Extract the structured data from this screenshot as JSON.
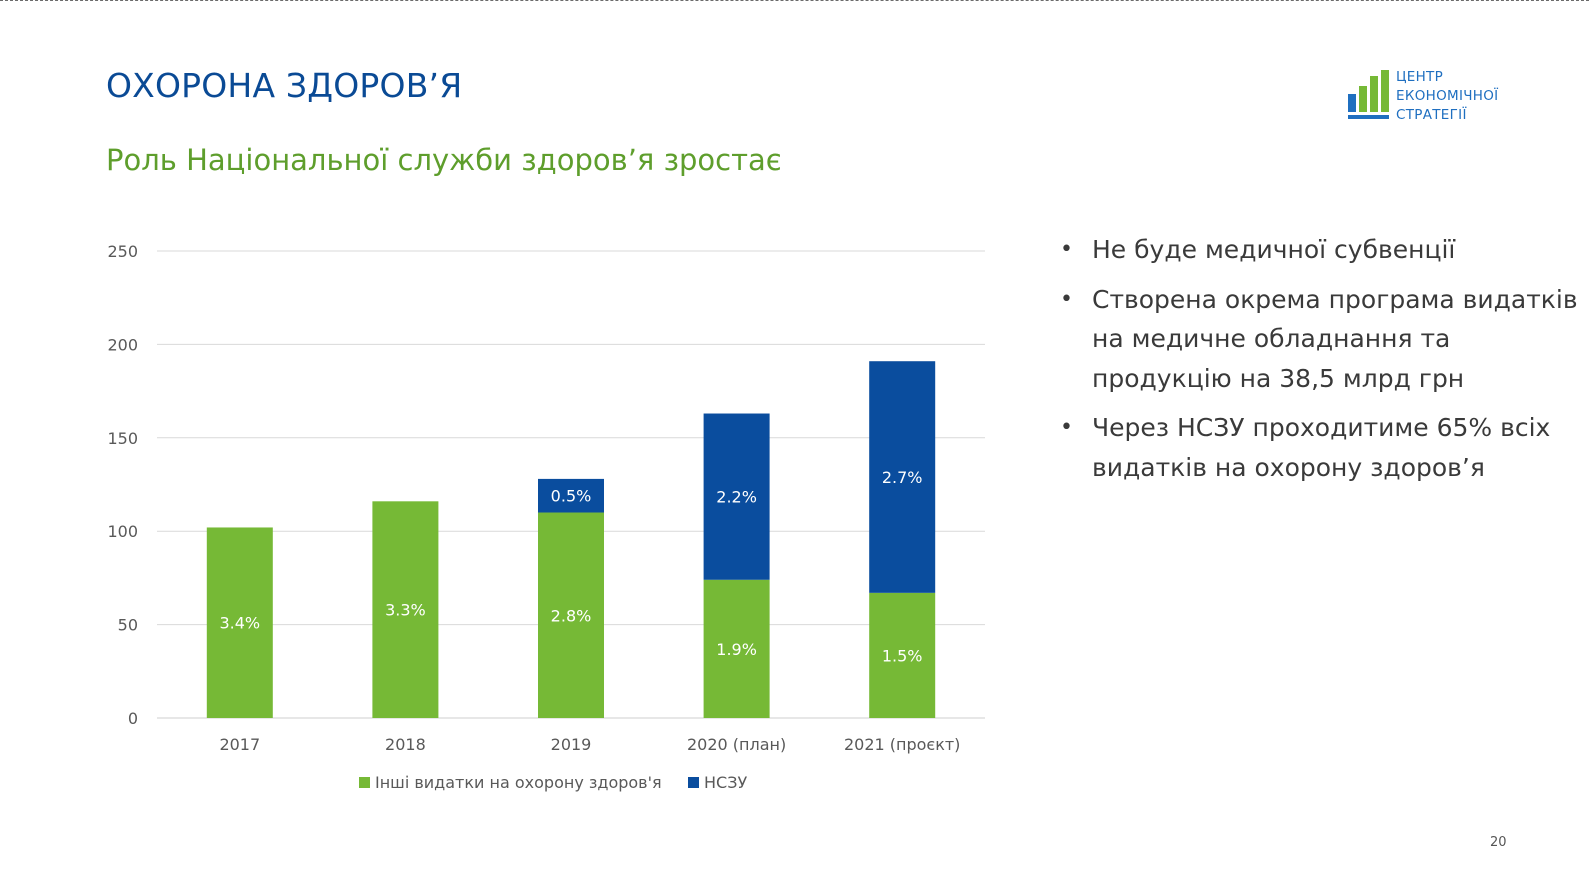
{
  "slide": {
    "title": "ОХОРОНА ЗДОРОВ’Я",
    "subtitle": "Роль Національної служби здоров’я зростає",
    "page_number": "20"
  },
  "logo": {
    "lines": [
      "ЦЕНТР",
      "ЕКОНОМІЧНОЇ",
      "СТРАТЕГІЇ"
    ],
    "icon": "bar-chart-logo-icon"
  },
  "bullets": [
    "Не буде медичної субвенції",
    "Створена окрема програма видатків на медичне обладнання та продукцію на 38,5 млрд грн",
    "Через НСЗУ проходитиме 65% всіх видатків на охорону здоров’я"
  ],
  "colors": {
    "title": "#0a4a95",
    "subtitle": "#5e9e2c",
    "green": "#76b936",
    "blue": "#0a4d9e",
    "grid": "#d9d9d9",
    "axis_text": "#595959"
  },
  "chart_data": {
    "type": "bar",
    "stacked": true,
    "title": "",
    "xlabel": "",
    "ylabel": "",
    "ylim": [
      0,
      250
    ],
    "yticks": [
      0,
      50,
      100,
      150,
      200,
      250
    ],
    "ytick_labels": [
      "0",
      "50",
      "100",
      "150",
      "200",
      "250"
    ],
    "grid": true,
    "legend_position": "bottom",
    "categories": [
      "2017",
      "2018",
      "2019",
      "2020 (план)",
      "2021 (проєкт)"
    ],
    "series": [
      {
        "name": "Інші видатки на охорону здоров'я",
        "color": "#76b936",
        "values": [
          102,
          116,
          110,
          74,
          67
        ],
        "labels": [
          "3.4%",
          "3.3%",
          "2.8%",
          "1.9%",
          "1.5%"
        ]
      },
      {
        "name": "НСЗУ",
        "color": "#0a4d9e",
        "values": [
          0,
          0,
          18,
          89,
          124
        ],
        "labels": [
          "",
          "",
          "0.5%",
          "2.2%",
          "2.7%"
        ]
      }
    ]
  }
}
